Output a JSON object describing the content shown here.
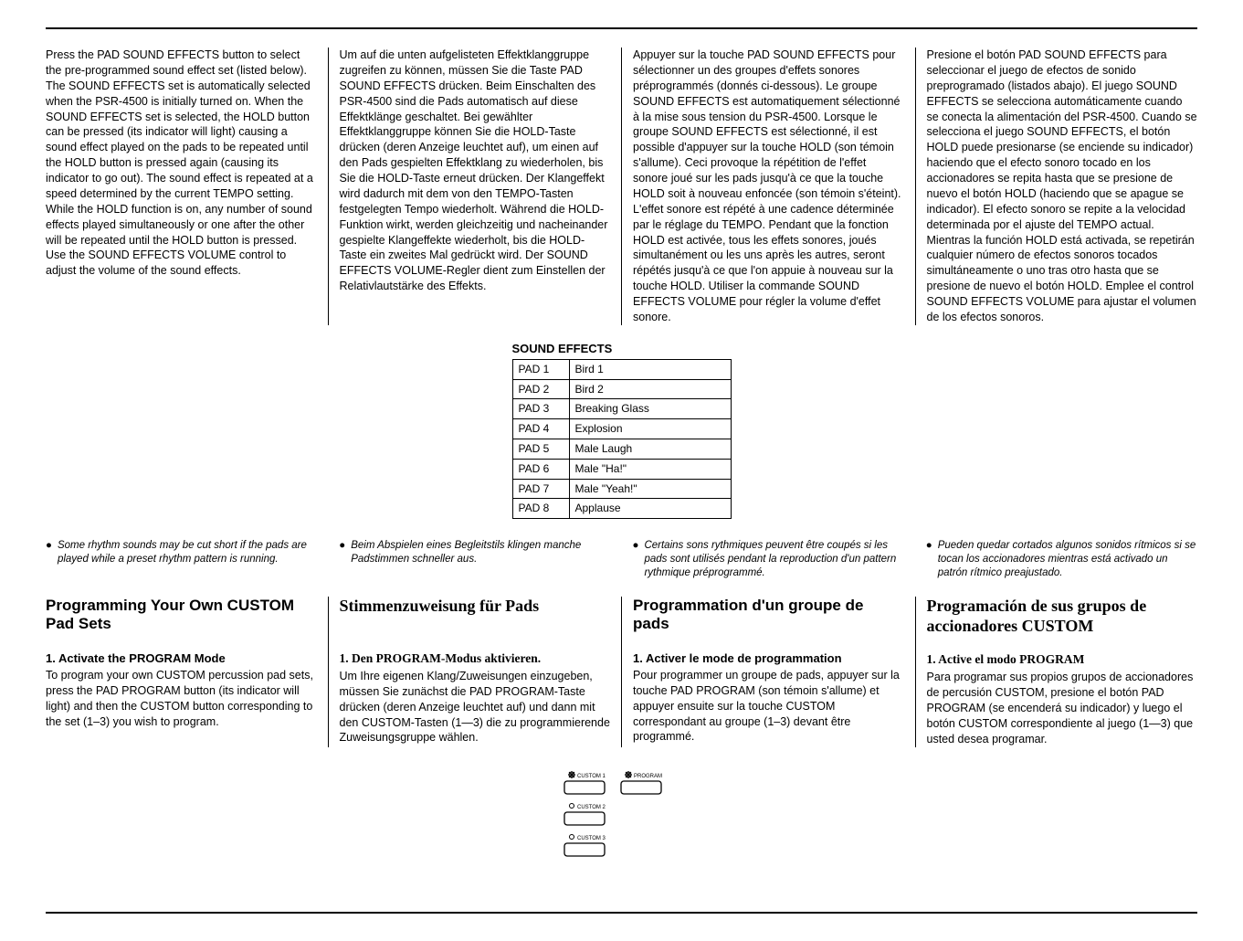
{
  "top": {
    "en": "Press the PAD SOUND EFFECTS button to select the pre-programmed sound effect set (listed below). The SOUND EFFECTS set is automatically selected when the PSR-4500 is initially turned on. When the SOUND EFFECTS set is selected, the HOLD button can be pressed (its indicator will light) causing a sound effect played on the pads to be repeated until the HOLD button is pressed again (causing its indicator to go out). The sound effect is repeated at a speed determined by the current TEMPO setting. While the HOLD function is on, any number of sound effects played simultaneously or one after the other will be repeated until the HOLD button is pressed. Use the SOUND EFFECTS VOLUME control to adjust the volume of the sound effects.",
    "de": "Um auf die unten aufgelisteten Effektklanggruppe zugreifen zu können, müssen Sie die Taste PAD SOUND EFFECTS drücken. Beim Einschalten des PSR-4500 sind die Pads automatisch auf diese Effektklänge geschaltet. Bei gewählter Effektklanggruppe können Sie die HOLD-Taste drücken (deren Anzeige leuchtet auf), um einen auf den Pads gespielten Effektklang zu wiederholen, bis Sie die HOLD-Taste erneut drücken. Der Klangeffekt wird dadurch mit dem von den TEMPO-Tasten festgelegten Tempo wiederholt. Während die HOLD-Funktion wirkt, werden gleichzeitig und nacheinander gespielte Klangeffekte wiederholt, bis die HOLD-Taste ein zweites Mal gedrückt wird. Der SOUND EFFECTS VOLUME-Regler dient zum Einstellen der Relativlautstärke des Effekts.",
    "fr": "Appuyer sur la touche PAD SOUND EFFECTS pour sélectionner un des groupes d'effets sonores préprogrammés (donnés ci-dessous). Le groupe SOUND EFFECTS est automatiquement sélectionné à la mise sous tension du PSR-4500. Lorsque le groupe SOUND EFFECTS est sélectionné, il est possible d'appuyer sur la touche HOLD (son témoin s'allume). Ceci provoque la répétition de l'effet sonore joué sur les pads jusqu'à ce que la touche HOLD soit à nouveau enfoncée (son témoin s'éteint). L'effet sonore est répété à une cadence déterminée par le réglage du TEMPO. Pendant que la fonction HOLD est activée, tous les effets sonores, joués simultanément ou les uns après les autres, seront répétés jusqu'à ce que l'on appuie à nouveau sur la touche HOLD. Utiliser la commande SOUND EFFECTS VOLUME pour régler la volume d'effet sonore.",
    "es": "Presione el botón PAD SOUND EFFECTS para seleccionar el juego de efectos de sonido preprogramado (listados abajo). El juego SOUND EFFECTS se selecciona automáticamente cuando se conecta la alimentación del PSR-4500. Cuando se selecciona el juego SOUND EFFECTS, el botón HOLD puede presionarse (se enciende su indicador) haciendo que el efecto sonoro tocado en los accionadores se repita hasta que se presione de nuevo el botón HOLD (haciendo que se apague se indicador). El efecto sonoro se repite a la velocidad determinada por el ajuste del TEMPO actual. Mientras la función HOLD está activada, se repetirán cualquier número de efectos sonoros tocados simultáneamente o uno tras otro hasta que se presione de nuevo el botón HOLD. Emplee el control SOUND EFFECTS VOLUME para ajustar el volumen de los efectos sonoros."
  },
  "table": {
    "title": "SOUND EFFECTS",
    "rows": [
      [
        "PAD 1",
        "Bird 1"
      ],
      [
        "PAD 2",
        "Bird 2"
      ],
      [
        "PAD 3",
        "Breaking Glass"
      ],
      [
        "PAD 4",
        "Explosion"
      ],
      [
        "PAD 5",
        "Male Laugh"
      ],
      [
        "PAD 6",
        "Male \"Ha!\""
      ],
      [
        "PAD 7",
        "Male \"Yeah!\""
      ],
      [
        "PAD 8",
        "Applause"
      ]
    ]
  },
  "bullets": {
    "en": "Some rhythm sounds may be cut short if the pads are played while a preset rhythm pattern is running.",
    "de": "Beim Abspielen eines Begleitstils klingen manche Padstimmen schneller aus.",
    "fr": "Certains sons rythmiques peuvent être coupés si les pads sont utilisés pendant la reproduction d'un pattern rythmique préprogrammé.",
    "es": "Pueden quedar cortados algunos sonidos rítmicos si se tocan los accionadores mientras está activado un patrón rítmico preajustado."
  },
  "headings": {
    "en": "Programming Your Own CUSTOM Pad Sets",
    "de": "Stimmenzuweisung für Pads",
    "fr": "Programmation d'un groupe de pads",
    "es": "Programación de sus grupos de accionadores CUSTOM"
  },
  "sub": {
    "en_h": "1. Activate the PROGRAM Mode",
    "en_b": "To program your own CUSTOM percussion pad sets, press the PAD PROGRAM button (its indicator will light) and then the CUSTOM button corresponding to the set (1–3) you wish to program.",
    "de_h": "1. Den PROGRAM-Modus aktivieren.",
    "de_b": "Um Ihre eigenen Klang/Zuweisungen einzugeben, müssen Sie zunächst die PAD PROGRAM-Taste drücken (deren Anzeige leuchtet auf) und dann mit den CUSTOM-Tasten (1—3) die zu programmierende Zuweisungsgruppe wählen.",
    "fr_h": "1. Activer le mode de programmation",
    "fr_b": "Pour programmer un groupe de pads, appuyer sur la touche PAD PROGRAM (son témoin s'allume) et appuyer ensuite sur la touche CUSTOM correspondant au groupe (1–3) devant être programmé.",
    "es_h": "1. Active el modo PROGRAM",
    "es_b": "Para programar sus propios grupos de accionadores de percusión CUSTOM, presione el botón PAD PROGRAM (se encenderá su indicador) y luego el botón CUSTOM correspondiente al juego (1—3) que usted desea programar."
  },
  "diagram": {
    "labels": [
      "CUSTOM 1",
      "PROGRAM",
      "CUSTOM 2",
      "CUSTOM 3"
    ]
  }
}
